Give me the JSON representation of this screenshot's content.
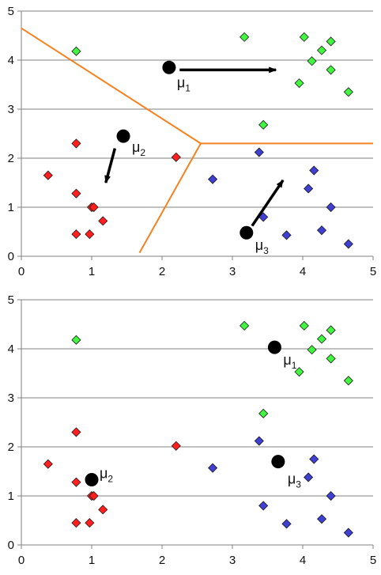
{
  "colors": {
    "red": "#ff1f1f",
    "green": "#41f541",
    "blue": "#3f3fd1",
    "centroid": "#000000",
    "boundary": "#f58220",
    "grid": "#808080",
    "axis": "#808080"
  },
  "chart_data": [
    {
      "type": "scatter",
      "title": "",
      "xlabel": "",
      "ylabel": "",
      "xlim": [
        0,
        5
      ],
      "ylim": [
        0,
        5
      ],
      "xticks": [
        "0",
        "1",
        "2",
        "3",
        "4",
        "5"
      ],
      "yticks": [
        "0",
        "1",
        "2",
        "3",
        "4",
        "5"
      ],
      "grid": "horizontal",
      "series": [
        {
          "color": "red",
          "points": [
            [
              0.38,
              1.65
            ],
            [
              0.78,
              2.3
            ],
            [
              0.78,
              1.28
            ],
            [
              0.78,
              0.45
            ],
            [
              0.97,
              0.45
            ],
            [
              1.0,
              1.0
            ],
            [
              1.03,
              1.0
            ],
            [
              1.16,
              0.72
            ],
            [
              2.2,
              2.02
            ]
          ]
        },
        {
          "color": "green",
          "points": [
            [
              0.78,
              4.18
            ],
            [
              3.17,
              4.47
            ],
            [
              3.44,
              2.68
            ],
            [
              3.95,
              3.53
            ],
            [
              4.02,
              4.47
            ],
            [
              4.13,
              3.98
            ],
            [
              4.27,
              4.2
            ],
            [
              4.4,
              4.38
            ],
            [
              4.4,
              3.8
            ],
            [
              4.65,
              3.35
            ]
          ]
        },
        {
          "color": "blue",
          "points": [
            [
              2.72,
              1.57
            ],
            [
              3.38,
              2.12
            ],
            [
              3.44,
              0.8
            ],
            [
              3.77,
              0.43
            ],
            [
              4.08,
              1.38
            ],
            [
              4.16,
              1.75
            ],
            [
              4.27,
              0.53
            ],
            [
              4.4,
              1.0
            ],
            [
              4.65,
              0.25
            ]
          ]
        }
      ],
      "centroids": [
        {
          "label": "μ",
          "sub": "1",
          "x": 2.1,
          "y": 3.85
        },
        {
          "label": "μ",
          "sub": "2",
          "x": 1.45,
          "y": 2.45
        },
        {
          "label": "μ",
          "sub": "3",
          "x": 3.2,
          "y": 0.48
        }
      ],
      "arrows": [
        {
          "from": [
            2.25,
            3.8
          ],
          "to": [
            3.62,
            3.8
          ]
        },
        {
          "from": [
            1.33,
            2.2
          ],
          "to": [
            1.2,
            1.5
          ]
        },
        {
          "from": [
            3.28,
            0.62
          ],
          "to": [
            3.72,
            1.55
          ]
        }
      ],
      "boundaries": [
        {
          "points": [
            [
              0.0,
              4.65
            ],
            [
              2.55,
              2.3
            ]
          ]
        },
        {
          "points": [
            [
              2.55,
              2.3
            ],
            [
              5.0,
              2.3
            ]
          ]
        },
        {
          "points": [
            [
              2.55,
              2.3
            ],
            [
              1.68,
              0.07
            ]
          ]
        }
      ]
    },
    {
      "type": "scatter",
      "title": "",
      "xlabel": "",
      "ylabel": "",
      "xlim": [
        0,
        5
      ],
      "ylim": [
        0,
        5
      ],
      "xticks": [
        "0",
        "1",
        "2",
        "3",
        "4",
        "5"
      ],
      "yticks": [
        "0",
        "1",
        "2",
        "3",
        "4",
        "5"
      ],
      "grid": "horizontal",
      "series": [
        {
          "color": "red",
          "points": [
            [
              0.38,
              1.65
            ],
            [
              0.78,
              2.3
            ],
            [
              0.78,
              1.28
            ],
            [
              0.78,
              0.45
            ],
            [
              0.97,
              0.45
            ],
            [
              1.0,
              1.0
            ],
            [
              1.03,
              1.0
            ],
            [
              1.16,
              0.72
            ],
            [
              2.2,
              2.02
            ]
          ]
        },
        {
          "color": "green",
          "points": [
            [
              0.78,
              4.18
            ],
            [
              3.17,
              4.47
            ],
            [
              3.44,
              2.68
            ],
            [
              3.95,
              3.53
            ],
            [
              4.02,
              4.47
            ],
            [
              4.13,
              3.98
            ],
            [
              4.27,
              4.2
            ],
            [
              4.4,
              4.38
            ],
            [
              4.4,
              3.8
            ],
            [
              4.65,
              3.35
            ]
          ]
        },
        {
          "color": "blue",
          "points": [
            [
              2.72,
              1.57
            ],
            [
              3.38,
              2.12
            ],
            [
              3.44,
              0.8
            ],
            [
              3.77,
              0.43
            ],
            [
              4.08,
              1.38
            ],
            [
              4.16,
              1.75
            ],
            [
              4.27,
              0.53
            ],
            [
              4.4,
              1.0
            ],
            [
              4.65,
              0.25
            ]
          ]
        }
      ],
      "centroids": [
        {
          "label": "μ",
          "sub": "1",
          "x": 3.6,
          "y": 4.03
        },
        {
          "label": "μ",
          "sub": "2",
          "x": 1.0,
          "y": 1.33
        },
        {
          "label": "μ",
          "sub": "3",
          "x": 3.65,
          "y": 1.7
        }
      ],
      "arrows": [],
      "boundaries": []
    }
  ]
}
